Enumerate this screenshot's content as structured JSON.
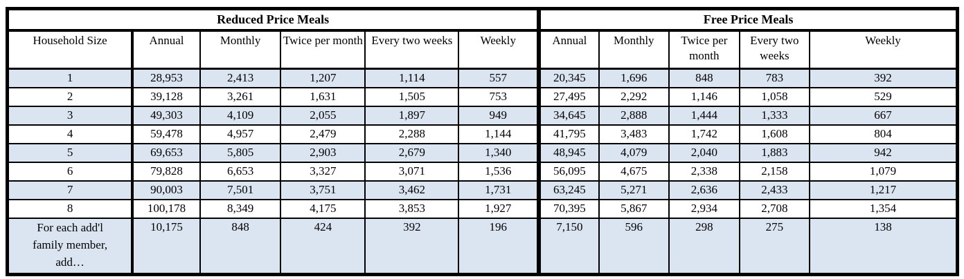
{
  "table": {
    "sections": [
      {
        "title": "Reduced Price Meals"
      },
      {
        "title": "Free Price Meals"
      }
    ],
    "row_header_label": "Household Size",
    "column_headers": [
      "Annual",
      "Monthly",
      "Twice per month",
      "Every two weeks",
      "Weekly"
    ],
    "rows": [
      {
        "label": "1",
        "reduced": [
          "28,953",
          "2,413",
          "1,207",
          "1,114",
          "557"
        ],
        "free": [
          "20,345",
          "1,696",
          "848",
          "783",
          "392"
        ]
      },
      {
        "label": "2",
        "reduced": [
          "39,128",
          "3,261",
          "1,631",
          "1,505",
          "753"
        ],
        "free": [
          "27,495",
          "2,292",
          "1,146",
          "1,058",
          "529"
        ]
      },
      {
        "label": "3",
        "reduced": [
          "49,303",
          "4,109",
          "2,055",
          "1,897",
          "949"
        ],
        "free": [
          "34,645",
          "2,888",
          "1,444",
          "1,333",
          "667"
        ]
      },
      {
        "label": "4",
        "reduced": [
          "59,478",
          "4,957",
          "2,479",
          "2,288",
          "1,144"
        ],
        "free": [
          "41,795",
          "3,483",
          "1,742",
          "1,608",
          "804"
        ]
      },
      {
        "label": "5",
        "reduced": [
          "69,653",
          "5,805",
          "2,903",
          "2,679",
          "1,340"
        ],
        "free": [
          "48,945",
          "4,079",
          "2,040",
          "1,883",
          "942"
        ]
      },
      {
        "label": "6",
        "reduced": [
          "79,828",
          "6,653",
          "3,327",
          "3,071",
          "1,536"
        ],
        "free": [
          "56,095",
          "4,675",
          "2,338",
          "2,158",
          "1,079"
        ]
      },
      {
        "label": "7",
        "reduced": [
          "90,003",
          "7,501",
          "3,751",
          "3,462",
          "1,731"
        ],
        "free": [
          "63,245",
          "5,271",
          "2,636",
          "2,433",
          "1,217"
        ]
      },
      {
        "label": "8",
        "reduced": [
          "100,178",
          "8,349",
          "4,175",
          "3,853",
          "1,927"
        ],
        "free": [
          "70,395",
          "5,867",
          "2,934",
          "2,708",
          "1,354"
        ]
      },
      {
        "label": "For each add'l family member, add…",
        "reduced": [
          "10,175",
          "848",
          "424",
          "392",
          "196"
        ],
        "free": [
          "7,150",
          "596",
          "298",
          "275",
          "138"
        ]
      }
    ],
    "colors": {
      "stripe": "#dbe5f1",
      "border": "#000000",
      "background": "#ffffff"
    }
  }
}
